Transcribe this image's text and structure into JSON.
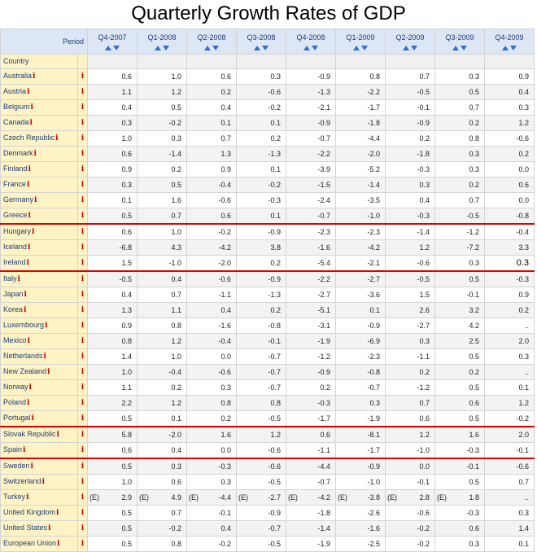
{
  "title": "Quarterly Growth Rates of GDP",
  "header": {
    "period_label": "Period",
    "country_label": "Country",
    "periods": [
      "Q4-2007",
      "Q1-2008",
      "Q2-2008",
      "Q3-2008",
      "Q4-2008",
      "Q1-2009",
      "Q2-2009",
      "Q3-2009",
      "Q4-2009"
    ]
  },
  "info_glyph": "i",
  "colors": {
    "separator": "#e00000",
    "info": "#cc0000",
    "country_bg": "#fdf3c4",
    "header_bg": "#dde6f4"
  },
  "rows": [
    {
      "country": "Australia",
      "values": [
        "0.6",
        "1.0",
        "0.6",
        "0.3",
        "-0.9",
        "0.8",
        "0.7",
        "0.3",
        "0.9"
      ]
    },
    {
      "country": "Austria",
      "values": [
        "1.1",
        "1.2",
        "0.2",
        "-0.6",
        "-1.3",
        "-2.2",
        "-0.5",
        "0.5",
        "0.4"
      ]
    },
    {
      "country": "Belgium",
      "values": [
        "0.4",
        "0.5",
        "0.4",
        "-0.2",
        "-2.1",
        "-1.7",
        "-0.1",
        "0.7",
        "0.3"
      ]
    },
    {
      "country": "Canada",
      "values": [
        "0.3",
        "-0.2",
        "0.1",
        "0.1",
        "-0.9",
        "-1.8",
        "-0.9",
        "0.2",
        "1.2"
      ]
    },
    {
      "country": "Czech Republic",
      "values": [
        "1.0",
        "0.3",
        "0.7",
        "0.2",
        "-0.7",
        "-4.4",
        "0.2",
        "0.8",
        "-0.6"
      ]
    },
    {
      "country": "Denmark",
      "values": [
        "0.6",
        "-1.4",
        "1.3",
        "-1.3",
        "-2.2",
        "-2.0",
        "-1.8",
        "0.3",
        "0.2"
      ]
    },
    {
      "country": "Finland",
      "values": [
        "0.9",
        "0.2",
        "0.9",
        "0.1",
        "-3.9",
        "-5.2",
        "-0.3",
        "0.3",
        "0.0"
      ]
    },
    {
      "country": "France",
      "values": [
        "0.3",
        "0.5",
        "-0.4",
        "-0.2",
        "-1.5",
        "-1.4",
        "0.3",
        "0.2",
        "0.6"
      ]
    },
    {
      "country": "Germany",
      "values": [
        "0.1",
        "1.6",
        "-0.6",
        "-0.3",
        "-2.4",
        "-3.5",
        "0.4",
        "0.7",
        "0.0"
      ]
    },
    {
      "country": "Greece",
      "values": [
        "0.5",
        "0.7",
        "0.6",
        "0.1",
        "-0.7",
        "-1.0",
        "-0.3",
        "-0.5",
        "-0.8"
      ]
    },
    {
      "country": "Hungary",
      "values": [
        "0.6",
        "1.0",
        "-0.2",
        "-0.9",
        "-2.3",
        "-2.3",
        "-1.4",
        "-1.2",
        "-0.4"
      ],
      "sep": true
    },
    {
      "country": "Iceland",
      "values": [
        "-6.8",
        "4.3",
        "-4.2",
        "3.8",
        "-1.6",
        "-4.2",
        "1.2",
        "-7.2",
        "3.3"
      ]
    },
    {
      "country": "Ireland",
      "values": [
        "1.5",
        "-1.0",
        "-2.0",
        "0.2",
        "-5.4",
        "-2.1",
        "-0.6",
        "0.3",
        "0.3"
      ],
      "hl": 8
    },
    {
      "country": "Italy",
      "values": [
        "-0.5",
        "0.4",
        "-0.6",
        "-0.9",
        "-2.2",
        "-2.7",
        "-0.5",
        "0.5",
        "-0.3"
      ],
      "sep": true
    },
    {
      "country": "Japan",
      "values": [
        "0.4",
        "0.7",
        "-1.1",
        "-1.3",
        "-2.7",
        "-3.6",
        "1.5",
        "-0.1",
        "0.9"
      ]
    },
    {
      "country": "Korea",
      "values": [
        "1.3",
        "1.1",
        "0.4",
        "0.2",
        "-5.1",
        "0.1",
        "2.6",
        "3.2",
        "0.2"
      ]
    },
    {
      "country": "Luxembourg",
      "values": [
        "0.9",
        "0.8",
        "-1.6",
        "-0.8",
        "-3.1",
        "-0.9",
        "-2.7",
        "4.2",
        ".."
      ]
    },
    {
      "country": "Mexico",
      "values": [
        "0.8",
        "1.2",
        "-0.4",
        "-0.1",
        "-1.9",
        "-6.9",
        "0.3",
        "2.5",
        "2.0"
      ]
    },
    {
      "country": "Netherlands",
      "values": [
        "1.4",
        "1.0",
        "0.0",
        "-0.7",
        "-1.2",
        "-2.3",
        "-1.1",
        "0.5",
        "0.3"
      ]
    },
    {
      "country": "New Zealand",
      "values": [
        "1.0",
        "-0.4",
        "-0.6",
        "-0.7",
        "-0.9",
        "-0.8",
        "0.2",
        "0.2",
        ".."
      ]
    },
    {
      "country": "Norway",
      "values": [
        "1.1",
        "0.2",
        "0.3",
        "-0.7",
        "0.2",
        "-0.7",
        "-1.2",
        "0.5",
        "0.1"
      ]
    },
    {
      "country": "Poland",
      "values": [
        "2.2",
        "1.2",
        "0.8",
        "0.8",
        "-0.3",
        "0.3",
        "0.7",
        "0.6",
        "1.2"
      ]
    },
    {
      "country": "Portugal",
      "values": [
        "0.5",
        "0.1",
        "0.2",
        "-0.5",
        "-1.7",
        "-1.9",
        "0.6",
        "0.5",
        "-0.2"
      ]
    },
    {
      "country": "Slovak Republic",
      "values": [
        "5.8",
        "-2.0",
        "1.6",
        "1.2",
        "0.6",
        "-8.1",
        "1.2",
        "1.6",
        "2.0"
      ],
      "sep": true
    },
    {
      "country": "Spain",
      "values": [
        "0.6",
        "0.4",
        "0.0",
        "-0.6",
        "-1.1",
        "-1.7",
        "-1.0",
        "-0.3",
        "-0.1"
      ]
    },
    {
      "country": "Sweden",
      "values": [
        "0.5",
        "0.3",
        "-0.3",
        "-0.6",
        "-4.4",
        "-0.9",
        "0.0",
        "-0.1",
        "-0.6"
      ],
      "sep": true
    },
    {
      "country": "Switzerland",
      "values": [
        "1.0",
        "0.6",
        "0.3",
        "-0.5",
        "-0.7",
        "-1.0",
        "-0.1",
        "0.5",
        "0.7"
      ]
    },
    {
      "country": "Turkey",
      "values": [
        "2.9",
        "4.9",
        "-4.4",
        "-2.7",
        "-4.2",
        "-3.8",
        "2.8",
        "1.8",
        ".."
      ],
      "flags": [
        "(E)",
        "(E)",
        "(E)",
        "(E)",
        "(E)",
        "(E)",
        "(E)",
        "(E)",
        ""
      ]
    },
    {
      "country": "United Kingdom",
      "values": [
        "0.5",
        "0.7",
        "-0.1",
        "-0.9",
        "-1.8",
        "-2.6",
        "-0.6",
        "-0.3",
        "0.3"
      ]
    },
    {
      "country": "United States",
      "values": [
        "0.5",
        "-0.2",
        "0.4",
        "-0.7",
        "-1.4",
        "-1.6",
        "-0.2",
        "0.6",
        "1.4"
      ]
    },
    {
      "country": "European Union",
      "values": [
        "0.5",
        "0.8",
        "-0.2",
        "-0.5",
        "-1.9",
        "-2.5",
        "-0.2",
        "0.3",
        "0.1"
      ]
    }
  ]
}
